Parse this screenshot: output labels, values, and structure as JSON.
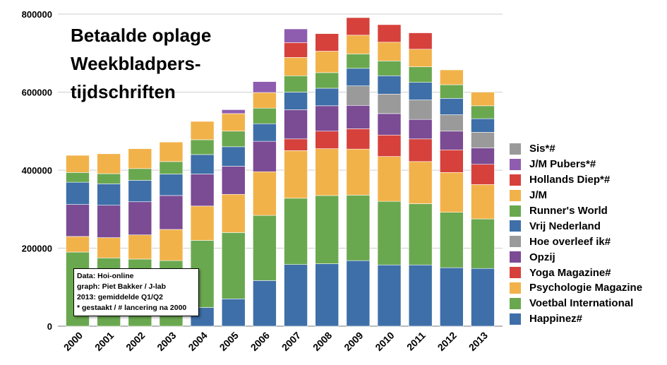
{
  "chart_data": {
    "type": "bar",
    "stacked": true,
    "title_lines": [
      "Betaalde oplage",
      "Weekbladpers-",
      "tijdschriften"
    ],
    "categories": [
      "2000",
      "2001",
      "2002",
      "2003",
      "2004",
      "2005",
      "2006",
      "2007",
      "2008",
      "2009",
      "2010",
      "2011",
      "2012",
      "2013"
    ],
    "ylim": [
      0,
      800000
    ],
    "yticks": [
      "0",
      "200000",
      "400000",
      "600000",
      "800000"
    ],
    "grid": true,
    "legend_position": "right",
    "series": [
      {
        "name": "Happinez#",
        "color": "#3E6FA8",
        "values": [
          0,
          0,
          0,
          0,
          48000,
          70000,
          117000,
          158000,
          160000,
          168000,
          157000,
          157000,
          150000,
          148000
        ]
      },
      {
        "name": "Voetbal International",
        "color": "#6AA84F",
        "values": [
          190000,
          175000,
          172000,
          168000,
          172000,
          170000,
          167000,
          170000,
          175000,
          168000,
          163000,
          157000,
          142000,
          127000
        ]
      },
      {
        "name": "Psychologie Magazine",
        "color": "#F2B24A",
        "values": [
          40000,
          52000,
          62000,
          80000,
          88000,
          98000,
          112000,
          122000,
          120000,
          118000,
          115000,
          108000,
          102000,
          88000
        ]
      },
      {
        "name": "Yoga Magazine#",
        "color": "#D6413C",
        "values": [
          0,
          0,
          0,
          0,
          0,
          0,
          0,
          30000,
          45000,
          52000,
          55000,
          58000,
          58000,
          52000
        ]
      },
      {
        "name": "Opzij",
        "color": "#7B4B94",
        "values": [
          82000,
          83000,
          85000,
          87000,
          82000,
          72000,
          78000,
          75000,
          65000,
          60000,
          55000,
          50000,
          48000,
          42000
        ]
      },
      {
        "name": "Hoe overleef ik#",
        "color": "#9A9A9A",
        "values": [
          0,
          0,
          0,
          0,
          0,
          0,
          0,
          0,
          0,
          50000,
          50000,
          50000,
          42000,
          40000
        ]
      },
      {
        "name": "Vrij Nederland",
        "color": "#3E6FA8",
        "values": [
          57000,
          55000,
          55000,
          55000,
          50000,
          50000,
          45000,
          45000,
          45000,
          45000,
          47000,
          45000,
          42000,
          35000
        ]
      },
      {
        "name": "Runner's World",
        "color": "#6AA84F",
        "values": [
          25000,
          26000,
          30000,
          32000,
          38000,
          40000,
          40000,
          42000,
          40000,
          37000,
          38000,
          40000,
          35000,
          33000
        ]
      },
      {
        "name": "J/M",
        "color": "#F2B24A",
        "values": [
          44000,
          51000,
          51000,
          50000,
          47000,
          45000,
          40000,
          47000,
          55000,
          48000,
          48000,
          45000,
          38000,
          35000
        ]
      },
      {
        "name": "Hollands Diep*#",
        "color": "#D6413C",
        "values": [
          0,
          0,
          0,
          0,
          0,
          0,
          0,
          38000,
          45000,
          45000,
          45000,
          42000,
          0,
          0
        ]
      },
      {
        "name": "J/M Pubers*#",
        "color": "#8E5DAF",
        "values": [
          0,
          0,
          0,
          0,
          0,
          10000,
          28000,
          35000,
          0,
          0,
          0,
          0,
          0,
          0
        ]
      },
      {
        "name": "Sis*#",
        "color": "#9A9A9A",
        "values": [
          0,
          0,
          0,
          0,
          0,
          0,
          0,
          0,
          0,
          0,
          0,
          0,
          0,
          0
        ]
      }
    ],
    "note_lines": [
      "Data: Hoi-online",
      "graph: Piet Bakker / J-lab",
      "2013: gemiddelde Q1/Q2",
      "* gestaakt / # lancering na 2000"
    ]
  }
}
